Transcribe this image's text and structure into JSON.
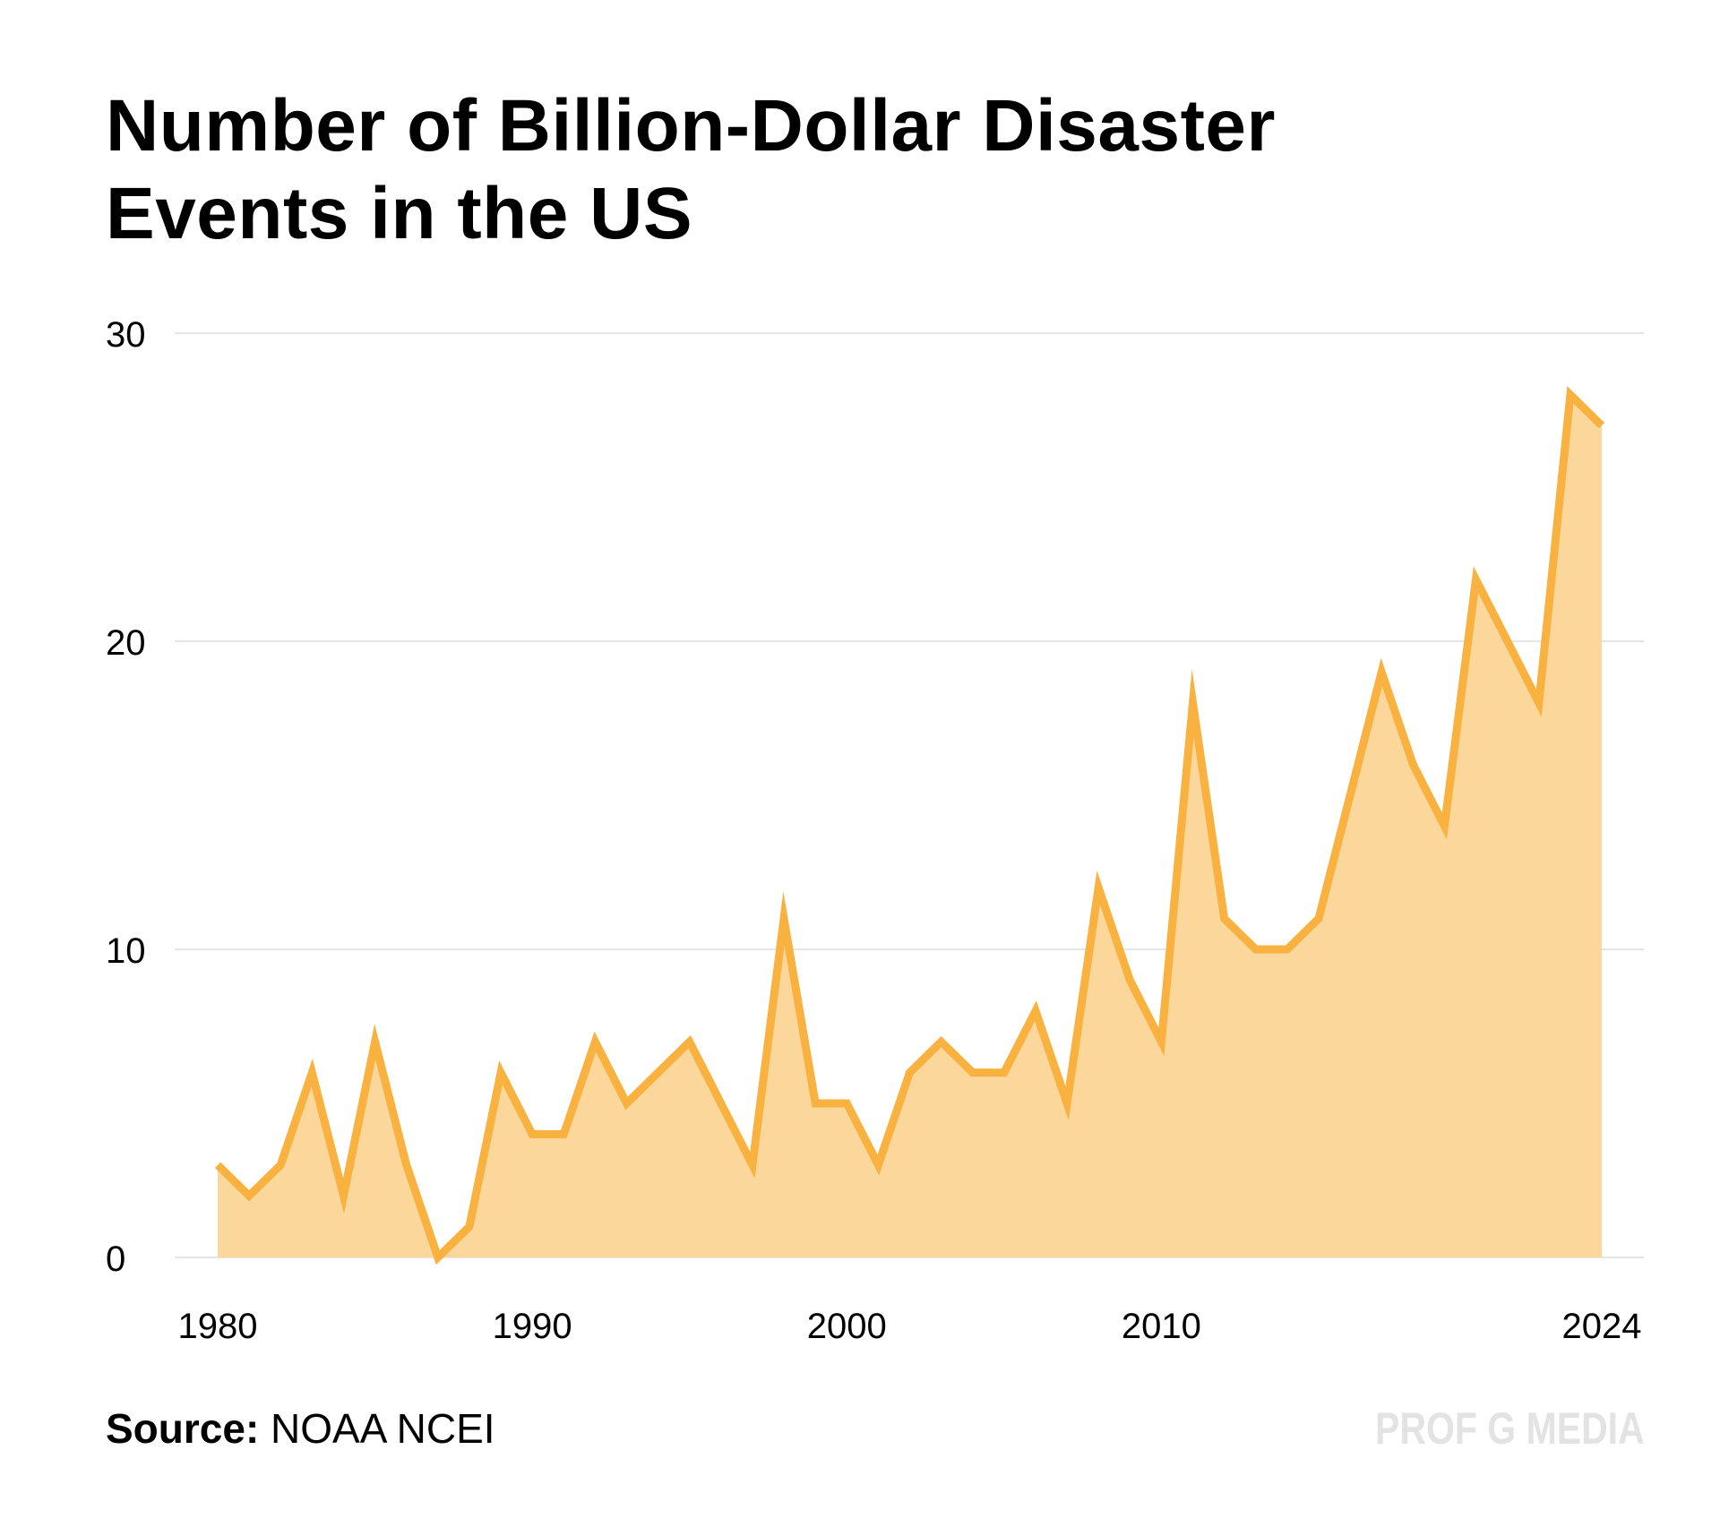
{
  "title": {
    "line1": "Number of Billion-Dollar Disaster",
    "line2": "Events in the US"
  },
  "source": {
    "label": "Source:",
    "text": "NOAA NCEI"
  },
  "brand": "PROF G MEDIA",
  "colors": {
    "line": "#f9b23f",
    "fill": "#fcd79b",
    "grid": "#e6e6e6",
    "text": "#000000",
    "brand": "#e3e3e3"
  },
  "chart_data": {
    "type": "area",
    "title": "Number of Billion-Dollar Disaster Events in the US",
    "xlabel": "",
    "ylabel": "",
    "xlim": [
      1980,
      2024
    ],
    "ylim": [
      0,
      30
    ],
    "yticks": [
      0,
      10,
      20,
      30
    ],
    "xticks": [
      1980,
      1990,
      2000,
      2010,
      2024
    ],
    "grid": true,
    "series": [
      {
        "name": "Billion-dollar disaster events",
        "x": [
          1980,
          1981,
          1982,
          1983,
          1984,
          1985,
          1986,
          1987,
          1988,
          1989,
          1990,
          1991,
          1992,
          1993,
          1994,
          1995,
          1996,
          1997,
          1998,
          1999,
          2000,
          2001,
          2002,
          2003,
          2004,
          2005,
          2006,
          2007,
          2008,
          2009,
          2010,
          2011,
          2012,
          2013,
          2014,
          2015,
          2016,
          2017,
          2018,
          2019,
          2020,
          2021,
          2022,
          2023,
          2024
        ],
        "values": [
          3,
          2,
          3,
          6,
          2,
          7,
          3,
          0,
          1,
          6,
          4,
          4,
          7,
          5,
          6,
          7,
          5,
          3,
          11,
          5,
          5,
          3,
          6,
          7,
          6,
          6,
          8,
          5,
          12,
          9,
          7,
          18,
          11,
          10,
          10,
          11,
          15,
          19,
          16,
          14,
          22,
          20,
          18,
          28,
          27
        ]
      }
    ]
  }
}
